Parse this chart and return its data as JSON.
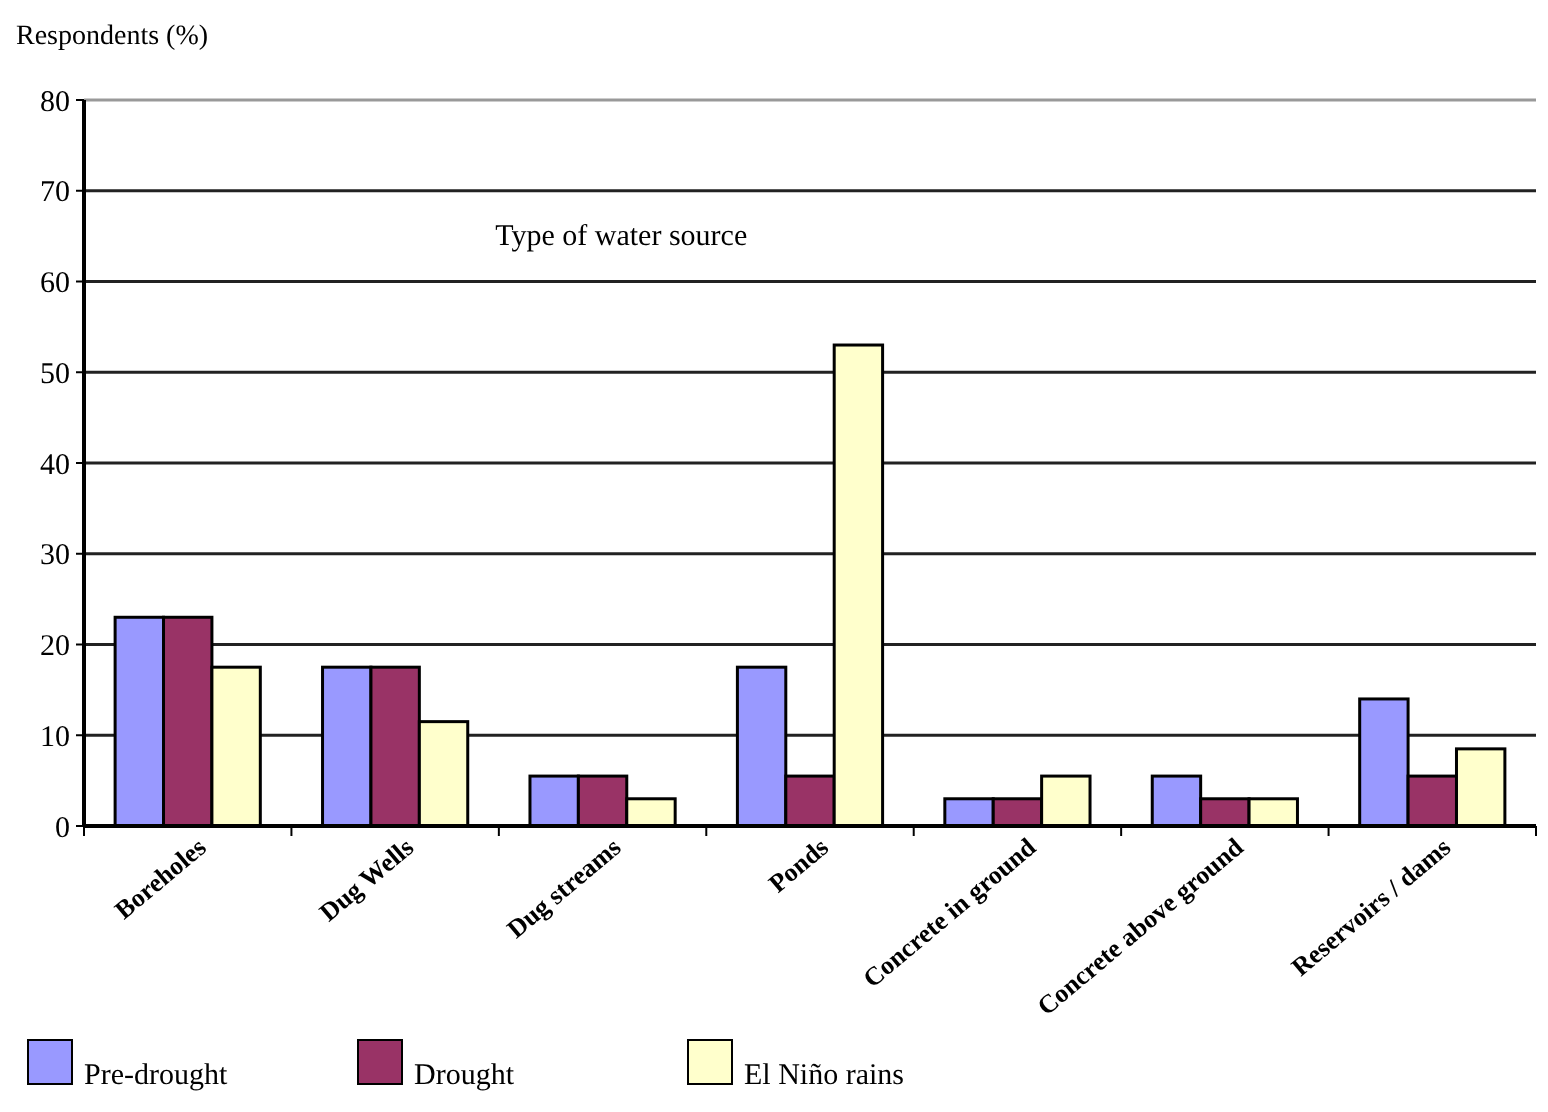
{
  "chart_data": {
    "type": "bar",
    "title": "Type of water source",
    "ylabel": "Respondents (%)",
    "categories": [
      "Boreholes",
      "Dug Wells",
      "Dug streams",
      "Ponds",
      "Concrete in ground",
      "Concrete above ground",
      "Reservoirs / dams"
    ],
    "series": [
      {
        "name": "Pre-drought",
        "color": "#9999ff",
        "values": [
          23,
          17.5,
          5.5,
          17.5,
          3,
          5.5,
          14
        ]
      },
      {
        "name": "Drought",
        "color": "#993366",
        "values": [
          23,
          17.5,
          5.5,
          5.5,
          3,
          3,
          5.5
        ]
      },
      {
        "name": "El Niño rains",
        "color": "#ffffcc",
        "values": [
          17.5,
          11.5,
          3,
          53,
          5.5,
          3,
          8.5
        ]
      }
    ],
    "ylim": [
      0,
      80
    ],
    "yticks": [
      0,
      10,
      20,
      30,
      40,
      50,
      60,
      70,
      80
    ],
    "grid": "y",
    "legend": "bottom left"
  }
}
